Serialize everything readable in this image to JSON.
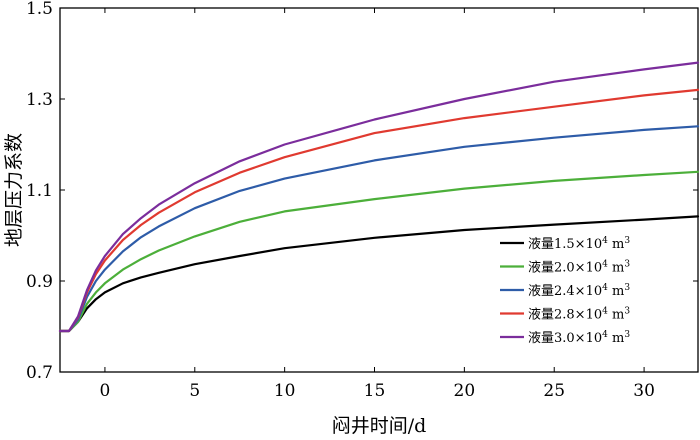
{
  "chart_data": {
    "type": "line",
    "xlabel": "闷井时间/d",
    "ylabel": "地层压力系数",
    "xlim": [
      -2.5,
      33
    ],
    "ylim": [
      0.7,
      1.5
    ],
    "x_ticks": [
      0,
      5,
      10,
      15,
      20,
      25,
      30
    ],
    "x_tick_labels": [
      "0",
      "5",
      "10",
      "15",
      "20",
      "25",
      "30"
    ],
    "y_ticks": [
      0.7,
      0.9,
      1.1,
      1.3,
      1.5
    ],
    "y_tick_labels": [
      "0.7",
      "0.9",
      "1.1",
      "1.3",
      "1.5"
    ],
    "legend_position": "lower-right",
    "grid": false,
    "legend_unit_text": "×10",
    "legend_unit_exp": "4",
    "legend_unit_suffix": " m",
    "legend_unit_sup": "3",
    "series": [
      {
        "name": "液量1.5",
        "color": "#000000",
        "x": [
          -2.5,
          -2,
          -1.5,
          -1,
          -0.5,
          0,
          1,
          2,
          3,
          5,
          7.5,
          10,
          15,
          20,
          25,
          30,
          33
        ],
        "y": [
          0.79,
          0.79,
          0.81,
          0.84,
          0.86,
          0.875,
          0.895,
          0.908,
          0.918,
          0.937,
          0.955,
          0.972,
          0.995,
          1.012,
          1.024,
          1.035,
          1.042
        ]
      },
      {
        "name": "液量2.0",
        "color": "#4caf3a",
        "x": [
          -2.5,
          -2,
          -1.5,
          -1,
          -0.5,
          0,
          1,
          2,
          3,
          5,
          7.5,
          10,
          15,
          20,
          25,
          30,
          33
        ],
        "y": [
          0.79,
          0.79,
          0.81,
          0.85,
          0.875,
          0.895,
          0.925,
          0.948,
          0.967,
          0.998,
          1.03,
          1.053,
          1.08,
          1.103,
          1.12,
          1.133,
          1.14
        ]
      },
      {
        "name": "液量2.4",
        "color": "#2e5ca8",
        "x": [
          -2.5,
          -2,
          -1.5,
          -1,
          -0.5,
          0,
          1,
          2,
          3,
          5,
          7.5,
          10,
          15,
          20,
          25,
          30,
          33
        ],
        "y": [
          0.79,
          0.79,
          0.815,
          0.865,
          0.9,
          0.925,
          0.965,
          0.996,
          1.02,
          1.06,
          1.098,
          1.125,
          1.165,
          1.195,
          1.215,
          1.232,
          1.24
        ]
      },
      {
        "name": "液量2.8",
        "color": "#e03a30",
        "x": [
          -2.5,
          -2,
          -1.5,
          -1,
          -0.5,
          0,
          1,
          2,
          3,
          5,
          7.5,
          10,
          15,
          20,
          25,
          30,
          33
        ],
        "y": [
          0.79,
          0.79,
          0.82,
          0.875,
          0.915,
          0.945,
          0.99,
          1.023,
          1.05,
          1.095,
          1.138,
          1.172,
          1.225,
          1.258,
          1.283,
          1.308,
          1.32
        ]
      },
      {
        "name": "液量3.0",
        "color": "#7b2d9c",
        "x": [
          -2.5,
          -2,
          -1.5,
          -1,
          -0.5,
          0,
          1,
          2,
          3,
          5,
          7.5,
          10,
          15,
          20,
          25,
          30,
          33
        ],
        "y": [
          0.79,
          0.79,
          0.822,
          0.88,
          0.923,
          0.955,
          1.003,
          1.038,
          1.068,
          1.115,
          1.163,
          1.2,
          1.255,
          1.3,
          1.338,
          1.365,
          1.38
        ]
      }
    ]
  }
}
